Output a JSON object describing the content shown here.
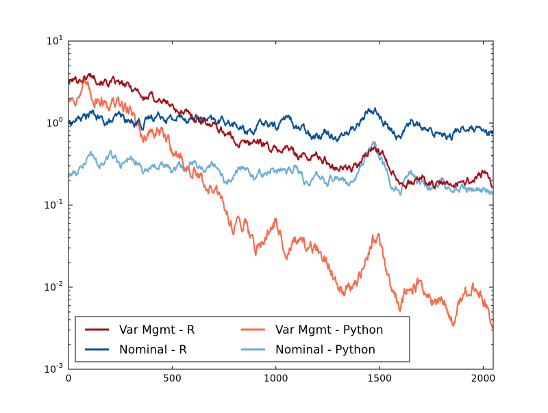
{
  "chart_data": {
    "type": "line",
    "title": "",
    "xlabel": "",
    "ylabel": "",
    "xlim": [
      0,
      2048
    ],
    "ylim": [
      0.001,
      10
    ],
    "yscale": "log",
    "grid": false,
    "legend_placement": "lower-left",
    "x_ticks": [
      0,
      500,
      1000,
      1500,
      2000
    ],
    "x_tick_labels": [
      "0",
      "500",
      "1000",
      "1500",
      "2000"
    ],
    "y_ticks": [
      0.001,
      0.01,
      0.1,
      1,
      10
    ],
    "y_tick_labels": [
      {
        "base": "10",
        "exp": "-3"
      },
      {
        "base": "10",
        "exp": "-2"
      },
      {
        "base": "10",
        "exp": "-1"
      },
      {
        "base": "10",
        "exp": "0"
      },
      {
        "base": "10",
        "exp": "1"
      }
    ],
    "series": [
      {
        "name": "Var Mgmt - R",
        "color": "#a50f15",
        "x": [
          0,
          40,
          80,
          110,
          150,
          200,
          250,
          300,
          340,
          360,
          400,
          450,
          500,
          550,
          600,
          650,
          700,
          750,
          800,
          850,
          900,
          950,
          1000,
          1050,
          1100,
          1150,
          1200,
          1250,
          1300,
          1350,
          1400,
          1450,
          1480,
          1500,
          1550,
          1600,
          1650,
          1700,
          1750,
          1800,
          1850,
          1900,
          1950,
          2000,
          2048
        ],
        "y": [
          3.2,
          3.4,
          3.6,
          3.9,
          3.5,
          3.1,
          2.9,
          2.7,
          2.5,
          2.0,
          2.1,
          1.9,
          1.6,
          1.3,
          1.2,
          1.1,
          0.95,
          0.8,
          0.62,
          0.55,
          0.62,
          0.55,
          0.45,
          0.5,
          0.42,
          0.38,
          0.4,
          0.33,
          0.3,
          0.28,
          0.3,
          0.45,
          0.5,
          0.48,
          0.3,
          0.2,
          0.18,
          0.22,
          0.17,
          0.18,
          0.17,
          0.2,
          0.2,
          0.25,
          0.16
        ]
      },
      {
        "name": "Nominal - R",
        "color": "#08519c",
        "x": [
          0,
          40,
          80,
          110,
          150,
          200,
          250,
          300,
          340,
          360,
          400,
          450,
          500,
          550,
          600,
          650,
          700,
          750,
          800,
          850,
          900,
          950,
          1000,
          1050,
          1100,
          1150,
          1200,
          1250,
          1300,
          1350,
          1400,
          1450,
          1480,
          1500,
          1550,
          1600,
          1650,
          1700,
          1750,
          1800,
          1850,
          1900,
          1950,
          2000,
          2048
        ],
        "y": [
          1.0,
          1.1,
          1.2,
          1.3,
          1.1,
          1.0,
          1.2,
          1.0,
          1.1,
          0.95,
          1.2,
          1.3,
          1.1,
          1.2,
          1.15,
          1.1,
          1.0,
          1.1,
          0.95,
          0.8,
          0.85,
          1.0,
          0.9,
          1.2,
          0.9,
          0.8,
          0.75,
          0.8,
          0.7,
          0.75,
          1.0,
          1.4,
          1.5,
          1.2,
          0.8,
          0.7,
          1.1,
          0.85,
          0.75,
          0.8,
          0.7,
          0.9,
          0.8,
          0.75,
          0.7
        ]
      },
      {
        "name": "Var Mgmt - Python",
        "color": "#fb6a4a",
        "x": [
          0,
          40,
          80,
          110,
          150,
          200,
          250,
          300,
          340,
          360,
          400,
          450,
          500,
          550,
          600,
          650,
          700,
          750,
          800,
          850,
          900,
          950,
          1000,
          1050,
          1100,
          1150,
          1200,
          1250,
          1300,
          1350,
          1400,
          1450,
          1480,
          1500,
          1550,
          1600,
          1650,
          1700,
          1750,
          1800,
          1850,
          1900,
          1950,
          2000,
          2048
        ],
        "y": [
          2.0,
          2.2,
          2.5,
          2.3,
          2.0,
          1.8,
          1.6,
          1.4,
          1.0,
          0.6,
          0.8,
          0.7,
          0.5,
          0.35,
          0.25,
          0.18,
          0.15,
          0.09,
          0.055,
          0.07,
          0.03,
          0.045,
          0.06,
          0.03,
          0.035,
          0.025,
          0.028,
          0.02,
          0.012,
          0.01,
          0.012,
          0.03,
          0.045,
          0.035,
          0.01,
          0.006,
          0.012,
          0.01,
          0.006,
          0.007,
          0.004,
          0.007,
          0.009,
          0.007,
          0.0035
        ]
      },
      {
        "name": "Nominal - Python",
        "color": "#6baed6",
        "x": [
          0,
          40,
          80,
          110,
          150,
          200,
          250,
          300,
          340,
          360,
          400,
          450,
          500,
          550,
          600,
          650,
          700,
          750,
          800,
          850,
          900,
          950,
          1000,
          1050,
          1100,
          1150,
          1200,
          1250,
          1300,
          1350,
          1400,
          1450,
          1480,
          1500,
          1550,
          1600,
          1650,
          1700,
          1750,
          1800,
          1850,
          1900,
          1950,
          2000,
          2048
        ],
        "y": [
          0.25,
          0.22,
          0.35,
          0.4,
          0.3,
          0.45,
          0.3,
          0.4,
          0.35,
          0.25,
          0.3,
          0.35,
          0.25,
          0.3,
          0.32,
          0.28,
          0.3,
          0.2,
          0.25,
          0.3,
          0.2,
          0.25,
          0.28,
          0.22,
          0.3,
          0.18,
          0.25,
          0.2,
          0.22,
          0.18,
          0.25,
          0.45,
          0.55,
          0.4,
          0.2,
          0.14,
          0.25,
          0.18,
          0.15,
          0.2,
          0.12,
          0.18,
          0.15,
          0.16,
          0.13
        ]
      }
    ]
  }
}
